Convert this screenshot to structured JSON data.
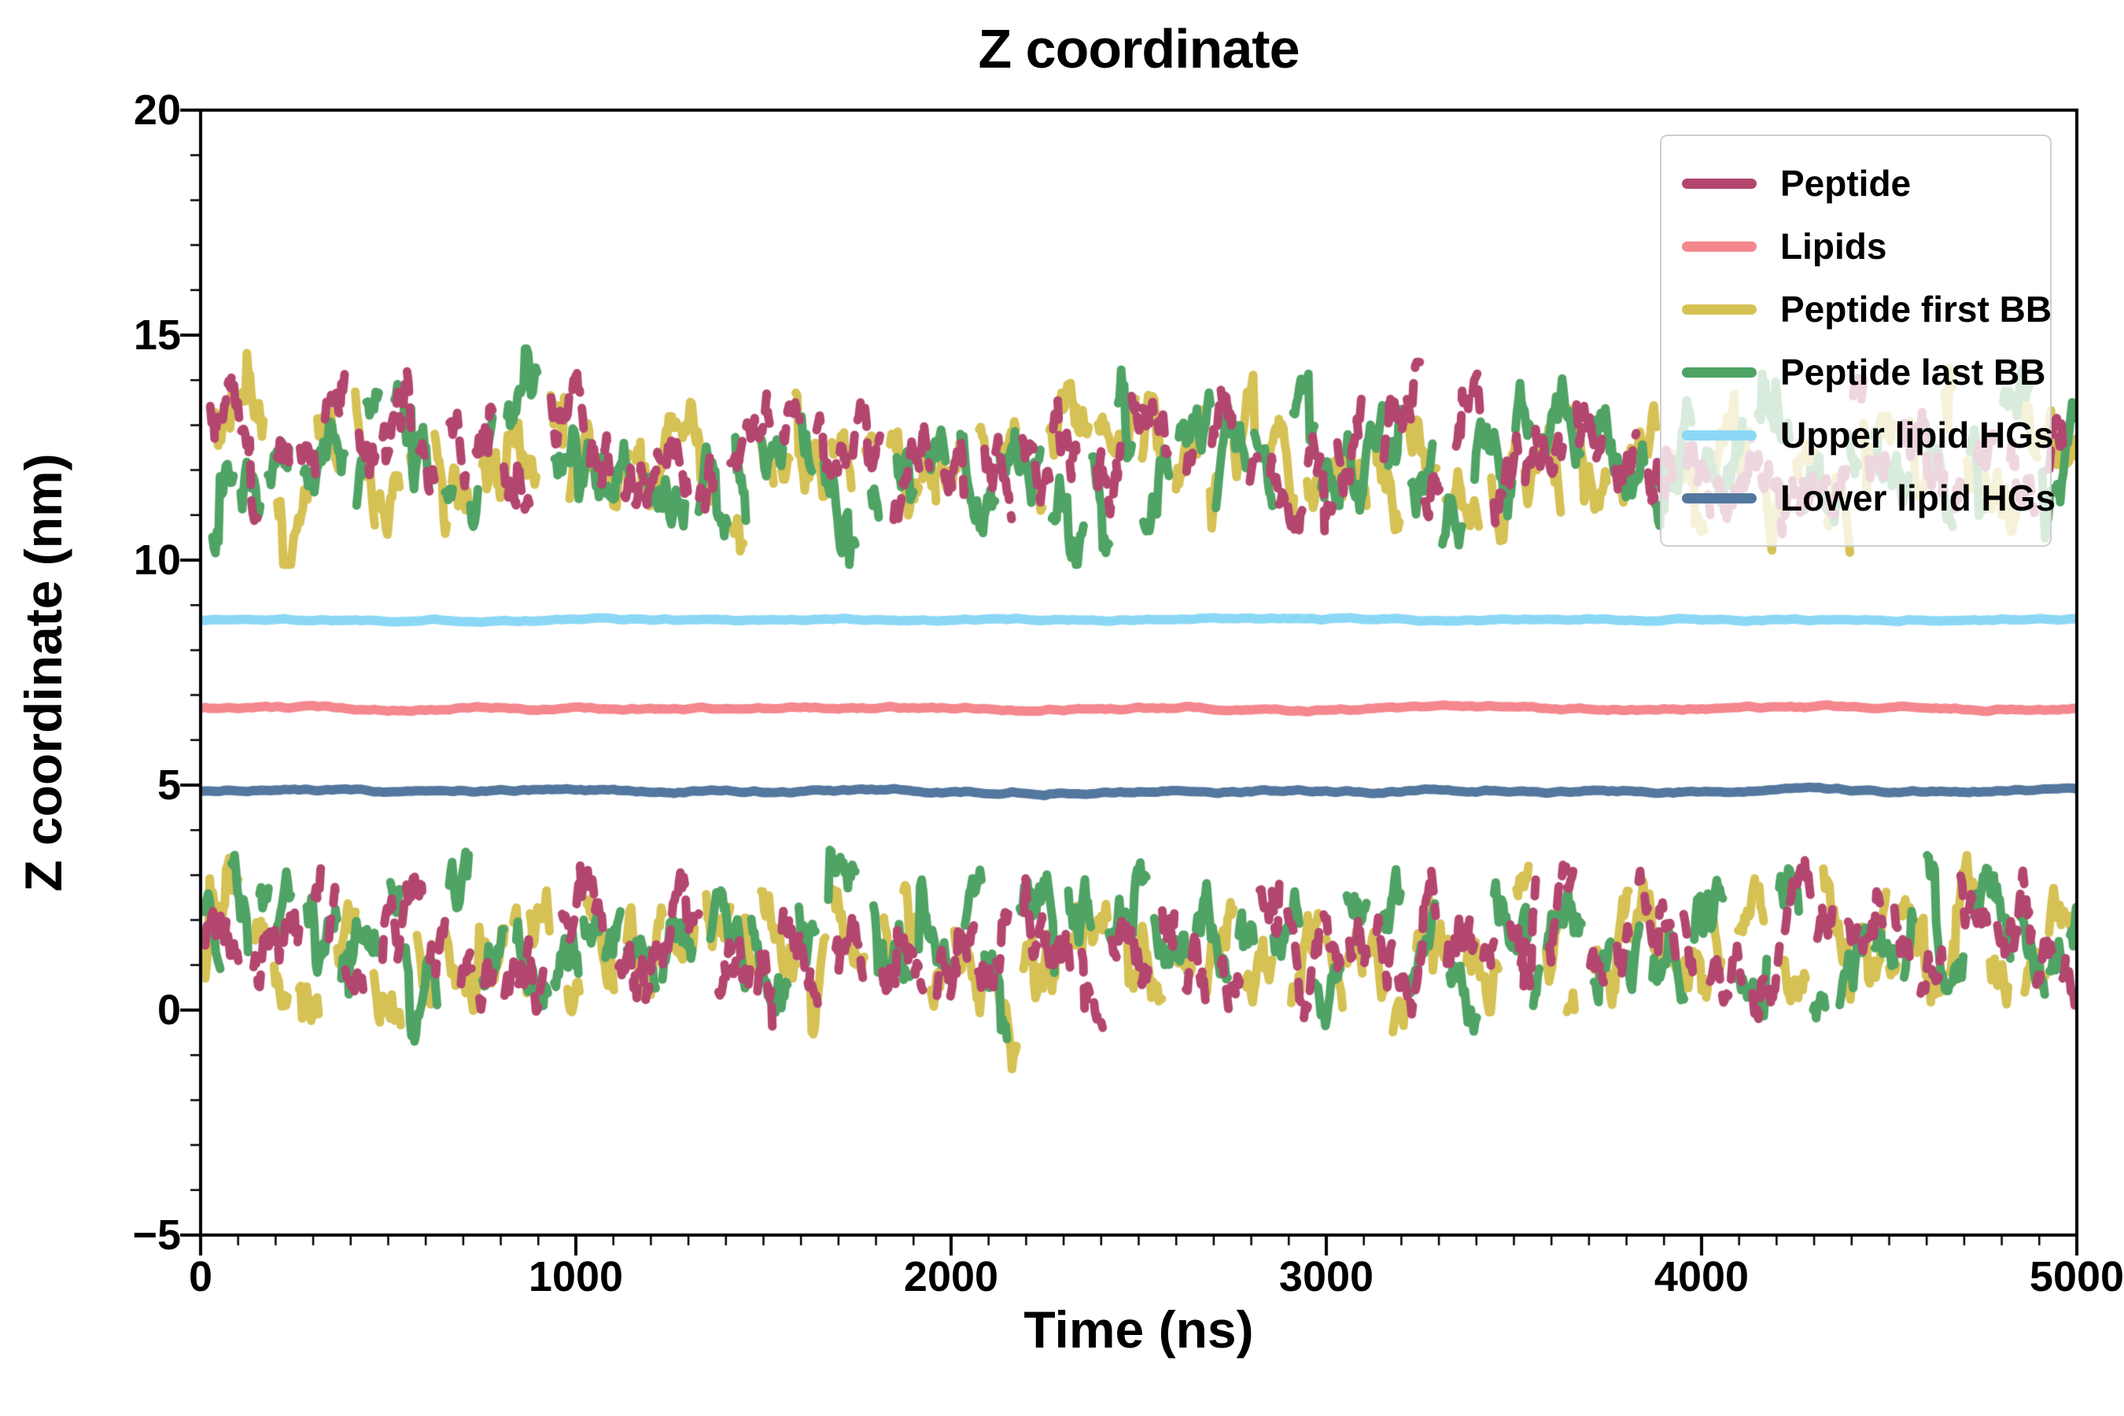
{
  "figure": {
    "title": "Z coordinate",
    "xlabel": "Time (ns)",
    "ylabel": "Z coordinate (nm)"
  },
  "chart_data": {
    "type": "line",
    "title": "Z coordinate",
    "xlabel": "Time (ns)",
    "ylabel": "Z coordinate (nm)",
    "xlim": [
      0,
      5000
    ],
    "ylim": [
      -5,
      20
    ],
    "xticks": [
      0,
      1000,
      2000,
      3000,
      4000,
      5000
    ],
    "xtick_labels": [
      "0",
      "1000",
      "2000",
      "3000",
      "4000",
      "5000"
    ],
    "yticks": [
      -5,
      0,
      5,
      10,
      15,
      20
    ],
    "ytick_labels": [
      "−5",
      "0",
      "5",
      "10",
      "15",
      "20"
    ],
    "x_minor_step": 100,
    "y_minor_step": 1,
    "grid": false,
    "legend_position": "upper right",
    "seed": 1337,
    "segment": {
      "dt": 4,
      "seg_min": 18,
      "seg_max": 110,
      "gap_min": 6,
      "gap_max": 50
    },
    "series": [
      {
        "name": "Peptide",
        "color": "#b3466f",
        "style": "noisy",
        "dashed": true,
        "linewidth": 11,
        "bands": [
          {
            "mean": 12.4,
            "sd": 0.85,
            "min": 10.1,
            "max": 14.4
          },
          {
            "mean": 1.5,
            "sd": 0.85,
            "min": -0.5,
            "max": 3.4
          }
        ]
      },
      {
        "name": "Lipids",
        "color": "#f5878e",
        "style": "flat",
        "value": 6.7,
        "noise": 0.05,
        "linewidth": 12
      },
      {
        "name": "Peptide first BB",
        "color": "#d6c154",
        "style": "noisy",
        "dashed": false,
        "linewidth": 11,
        "bands": [
          {
            "mean": 12.5,
            "sd": 1.05,
            "min": 9.9,
            "max": 15.4
          },
          {
            "mean": 1.4,
            "sd": 1.1,
            "min": -1.6,
            "max": 4.2
          }
        ]
      },
      {
        "name": "Peptide last BB",
        "color": "#4fa364",
        "style": "noisy",
        "dashed": false,
        "linewidth": 11,
        "bands": [
          {
            "mean": 12.2,
            "sd": 1.0,
            "min": 9.9,
            "max": 14.7
          },
          {
            "mean": 1.6,
            "sd": 1.0,
            "min": -1.0,
            "max": 3.7
          }
        ]
      },
      {
        "name": "Upper lipid HGs",
        "color": "#8bd8f6",
        "style": "flat",
        "value": 8.68,
        "noise": 0.04,
        "linewidth": 12
      },
      {
        "name": "Lower lipid HGs",
        "color": "#53779e",
        "style": "flat",
        "value": 4.87,
        "noise": 0.05,
        "linewidth": 12
      }
    ],
    "draw_order": [
      "Upper lipid HGs",
      "Lipids",
      "Lower lipid HGs",
      "Peptide first BB",
      "Peptide last BB",
      "Peptide"
    ]
  }
}
